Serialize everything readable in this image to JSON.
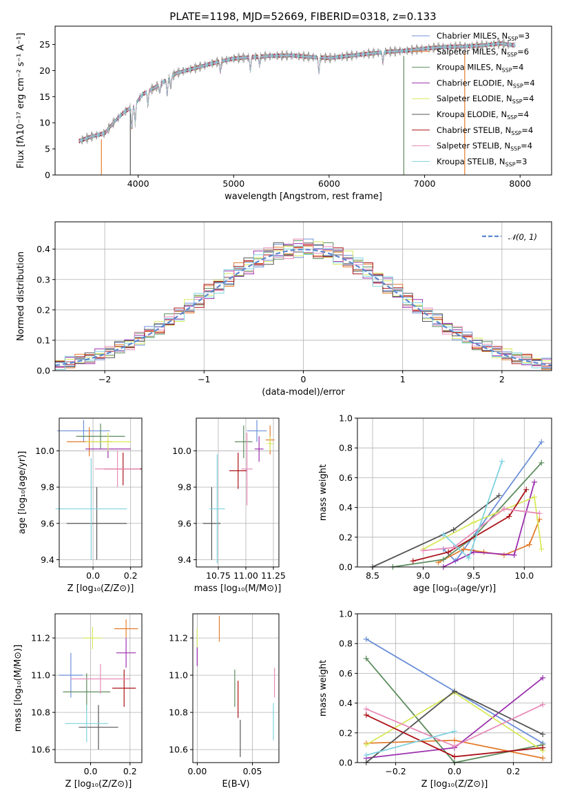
{
  "figure": {
    "title": "PLATE=1198, MJD=52669, FIBERID=0318, z=0.133"
  },
  "colors": {
    "series": [
      "#6b8fd8",
      "#e37b2b",
      "#5c8c5c",
      "#9b2fae",
      "#d7e85a",
      "#555555",
      "#aa1016",
      "#e88ab8",
      "#7ed3e0"
    ],
    "spectrum": "#888888",
    "grid": "#b0b0b0"
  },
  "spectrum_panel": {
    "xlabel": "wavelength [Angstrom, rest frame]",
    "ylabel": "Flux [fλ10⁻¹⁷ erg cm⁻² s⁻¹ A⁻¹]",
    "legend": [
      "Chabrier MILES, N_SSP=3",
      "Salpeter MILES, N_SSP=6",
      "Kroupa MILES, N_SSP=4",
      "Chabrier ELODIE, N_SSP=4",
      "Salpeter ELODIE, N_SSP=4",
      "Kroupa ELODIE, N_SSP=4",
      "Chabrier STELIB, N_SSP=4",
      "Salpeter STELIB, N_SSP=4",
      "Kroupa STELIB, N_SSP=3"
    ],
    "legend_text": [
      [
        "Chabrier MILES, N",
        "SSP",
        "=3"
      ],
      [
        "Salpeter MILES, N",
        "SSP",
        "=6"
      ],
      [
        "Kroupa MILES, N",
        "SSP",
        "=4"
      ],
      [
        "Chabrier ELODIE, N",
        "SSP",
        "=4"
      ],
      [
        "Salpeter ELODIE, N",
        "SSP",
        "=4"
      ],
      [
        "Kroupa ELODIE, N",
        "SSP",
        "=4"
      ],
      [
        "Chabrier STELIB, N",
        "SSP",
        "=4"
      ],
      [
        "Salpeter STELIB, N",
        "SSP",
        "=4"
      ],
      [
        "Kroupa STELIB, N",
        "SSP",
        "=3"
      ]
    ]
  },
  "histogram_panel": {
    "xlabel": "(data-model)/error",
    "ylabel": "Normed distribution",
    "legend": "𝒩(0, 1)"
  },
  "labels": {
    "age": "age  [log₁₀(age/yr)]",
    "z": "Z [log₁₀(Z/Z⊙)]",
    "mass": "mass [log₁₀(M/M⊙)]",
    "massw": "mass weight",
    "ebv": "E(B-V)"
  },
  "chart_data": [
    {
      "type": "line",
      "title": "PLATE=1198, MJD=52669, FIBERID=0318, z=0.133",
      "xlabel": "wavelength [Angstrom, rest frame]",
      "ylabel": "Flux [fλ10⁻¹⁷ erg cm⁻² s⁻¹ A⁻¹]",
      "xlim": [
        3130,
        8330
      ],
      "ylim": [
        0,
        28.5
      ],
      "xticks": [
        4000,
        5000,
        6000,
        7000,
        8000
      ],
      "yticks": [
        0,
        5,
        10,
        15,
        20,
        25
      ],
      "grid": false,
      "legend_position": "upper-right",
      "continuum": [
        [
          3380,
          6.5
        ],
        [
          3500,
          7.3
        ],
        [
          3650,
          8.0
        ],
        [
          3750,
          10.2
        ],
        [
          3850,
          12.0
        ],
        [
          3950,
          13.2
        ],
        [
          4050,
          15.5
        ],
        [
          4200,
          17.0
        ],
        [
          4400,
          19.5
        ],
        [
          4600,
          20.5
        ],
        [
          4800,
          21.5
        ],
        [
          5000,
          22.3
        ],
        [
          5200,
          22.6
        ],
        [
          5400,
          22.8
        ],
        [
          5600,
          22.9
        ],
        [
          5800,
          22.6
        ],
        [
          6000,
          22.4
        ],
        [
          6200,
          22.8
        ],
        [
          6400,
          23.2
        ],
        [
          6600,
          23.6
        ],
        [
          6800,
          23.8
        ],
        [
          7000,
          24.2
        ],
        [
          7200,
          24.5
        ],
        [
          7400,
          24.6
        ],
        [
          7600,
          24.8
        ],
        [
          7800,
          25.2
        ],
        [
          7950,
          24.8
        ]
      ],
      "dips": [
        [
          3934,
          4.0
        ],
        [
          3969,
          3.5
        ],
        [
          4102,
          2.5
        ],
        [
          4226,
          1.5
        ],
        [
          4304,
          3.0
        ],
        [
          4341,
          2.0
        ],
        [
          4861,
          2.0
        ],
        [
          5175,
          2.5
        ],
        [
          5270,
          1.5
        ],
        [
          5893,
          3.0
        ],
        [
          6563,
          2.0
        ]
      ],
      "model_spikes": [
        [
          3615,
          "Salpeter MILES, N_SSP=6"
        ],
        [
          3918,
          "Kroupa ELODIE, N_SSP=4"
        ],
        [
          6782,
          "Kroupa MILES, N_SSP=4"
        ],
        [
          7420,
          "Salpeter MILES, N_SSP=6"
        ]
      ],
      "legend": [
        "Chabrier MILES, N_SSP=3",
        "Salpeter MILES, N_SSP=6",
        "Kroupa MILES, N_SSP=4",
        "Chabrier ELODIE, N_SSP=4",
        "Salpeter ELODIE, N_SSP=4",
        "Kroupa ELODIE, N_SSP=4",
        "Chabrier STELIB, N_SSP=4",
        "Salpeter STELIB, N_SSP=4",
        "Kroupa STELIB, N_SSP=3"
      ]
    },
    {
      "type": "histogram",
      "xlabel": "(data-model)/error",
      "ylabel": "Normed distribution",
      "xlim": [
        -2.5,
        2.5
      ],
      "ylim": [
        0,
        0.49
      ],
      "xticks": [
        -2,
        -1,
        0,
        1,
        2
      ],
      "yticks": [
        0.0,
        0.1,
        0.2,
        0.3,
        0.4
      ],
      "grid": true,
      "bin_width": 0.1,
      "reference_curve": "𝒩(0, 1)",
      "legend_position": "upper-right",
      "bin_jitter": [
        0.012,
        -0.008,
        0.03,
        -0.016,
        0.022,
        -0.014,
        0.008,
        0.02,
        -0.026,
        0.015,
        -0.01,
        0.035,
        -0.02,
        0.006,
        0.018,
        -0.012
      ]
    },
    {
      "type": "scatter",
      "xlabel": "Z [log₁₀(Z/Z⊙)]",
      "ylabel": "age  [log₁₀(age/yr)]",
      "xlim": [
        -0.18,
        0.26
      ],
      "ylim": [
        9.36,
        10.18
      ],
      "xticks": [
        0.0,
        0.2
      ],
      "yticks": [
        9.4,
        9.6,
        9.8,
        10.0
      ],
      "grid": true,
      "series": [
        {
          "name": "Chabrier MILES, N_SSP=3",
          "x": -0.05,
          "y": 10.11,
          "xerr": 0.14,
          "yerr": 0.06
        },
        {
          "name": "Salpeter MILES, N_SSP=6",
          "x": -0.02,
          "y": 10.05,
          "xerr": 0.12,
          "yerr": 0.08
        },
        {
          "name": "Kroupa MILES, N_SSP=4",
          "x": 0.04,
          "y": 10.08,
          "xerr": 0.13,
          "yerr": 0.07
        },
        {
          "name": "Chabrier ELODIE, N_SSP=4",
          "x": 0.08,
          "y": 10.01,
          "xerr": 0.12,
          "yerr": 0.05
        },
        {
          "name": "Salpeter ELODIE, N_SSP=4",
          "x": 0.08,
          "y": 10.05,
          "xerr": 0.12,
          "yerr": 0.05
        },
        {
          "name": "Kroupa ELODIE, N_SSP=4",
          "x": 0.02,
          "y": 9.6,
          "xerr": 0.16,
          "yerr": 0.2
        },
        {
          "name": "Chabrier STELIB, N_SSP=4",
          "x": 0.16,
          "y": 9.9,
          "xerr": 0.1,
          "yerr": 0.09
        },
        {
          "name": "Salpeter STELIB, N_SSP=4",
          "x": 0.13,
          "y": 9.9,
          "xerr": 0.12,
          "yerr": 0.1
        },
        {
          "name": "Kroupa STELIB, N_SSP=3",
          "x": -0.01,
          "y": 9.68,
          "xerr": 0.19,
          "yerr": 0.28
        }
      ]
    },
    {
      "type": "scatter",
      "xlabel": "mass [log₁₀(M/M⊙)]",
      "ylabel": "",
      "xlim": [
        10.55,
        11.3
      ],
      "ylim": [
        9.36,
        10.18
      ],
      "xticks": [
        10.75,
        11.0,
        11.25
      ],
      "yticks": [
        9.4,
        9.6,
        9.8,
        10.0
      ],
      "grid": true,
      "series": [
        {
          "name": "Chabrier MILES, N_SSP=3",
          "x": 11.1,
          "y": 10.11,
          "xerr": 0.09,
          "yerr": 0.06
        },
        {
          "name": "Salpeter MILES, N_SSP=6",
          "x": 11.22,
          "y": 10.06,
          "xerr": 0.04,
          "yerr": 0.08
        },
        {
          "name": "Kroupa MILES, N_SSP=4",
          "x": 10.98,
          "y": 10.05,
          "xerr": 0.08,
          "yerr": 0.09
        },
        {
          "name": "Chabrier ELODIE, N_SSP=4",
          "x": 11.12,
          "y": 10.01,
          "xerr": 0.04,
          "yerr": 0.07
        },
        {
          "name": "Salpeter ELODIE, N_SSP=4",
          "x": 11.22,
          "y": 10.04,
          "xerr": 0.03,
          "yerr": 0.04
        },
        {
          "name": "Kroupa ELODIE, N_SSP=4",
          "x": 10.69,
          "y": 9.6,
          "xerr": 0.08,
          "yerr": 0.2
        },
        {
          "name": "Chabrier STELIB, N_SSP=4",
          "x": 10.93,
          "y": 9.89,
          "xerr": 0.08,
          "yerr": 0.1
        },
        {
          "name": "Salpeter STELIB, N_SSP=4",
          "x": 11.01,
          "y": 9.9,
          "xerr": 0.05,
          "yerr": 0.2
        },
        {
          "name": "Kroupa STELIB, N_SSP=3",
          "x": 10.74,
          "y": 9.68,
          "xerr": 0.07,
          "yerr": 0.3
        }
      ]
    },
    {
      "type": "line",
      "xlabel": "age  [log₁₀(age/yr)]",
      "ylabel": "mass weight",
      "xlim": [
        8.35,
        10.27
      ],
      "ylim": [
        0,
        1.0
      ],
      "xticks": [
        8.5,
        9.0,
        9.5,
        10.0
      ],
      "yticks": [
        0.0,
        0.2,
        0.4,
        0.6,
        0.8,
        1.0
      ],
      "grid": true,
      "series": [
        {
          "name": "Chabrier MILES, N_SSP=3",
          "x": [
            9.2,
            9.32,
            10.17
          ],
          "y": [
            0.12,
            0.04,
            0.84
          ]
        },
        {
          "name": "Salpeter MILES, N_SSP=6",
          "x": [
            9.15,
            9.4,
            9.6,
            9.8,
            10.05,
            10.15
          ],
          "y": [
            0.03,
            0.12,
            0.1,
            0.08,
            0.15,
            0.32
          ]
        },
        {
          "name": "Kroupa MILES, N_SSP=4",
          "x": [
            8.7,
            9.2,
            9.5,
            10.17
          ],
          "y": [
            0.0,
            0.05,
            0.2,
            0.7
          ]
        },
        {
          "name": "Chabrier ELODIE, N_SSP=4",
          "x": [
            9.2,
            9.5,
            9.9,
            10.1
          ],
          "y": [
            0.0,
            0.1,
            0.08,
            0.57
          ]
        },
        {
          "name": "Salpeter ELODIE, N_SSP=4",
          "x": [
            9.0,
            9.5,
            10.1,
            10.17
          ],
          "y": [
            0.12,
            0.3,
            0.47,
            0.12
          ]
        },
        {
          "name": "Kroupa ELODIE, N_SSP=4",
          "x": [
            8.5,
            9.3,
            9.75
          ],
          "y": [
            0.0,
            0.25,
            0.48
          ]
        },
        {
          "name": "Chabrier STELIB, N_SSP=4",
          "x": [
            8.9,
            9.25,
            9.85,
            10.02
          ],
          "y": [
            0.04,
            0.1,
            0.34,
            0.52
          ]
        },
        {
          "name": "Salpeter STELIB, N_SSP=4",
          "x": [
            9.0,
            9.3,
            9.8,
            10.15
          ],
          "y": [
            0.11,
            0.13,
            0.39,
            0.36
          ]
        },
        {
          "name": "Kroupa STELIB, N_SSP=3",
          "x": [
            9.2,
            9.45,
            9.78
          ],
          "y": [
            0.22,
            0.06,
            0.71
          ]
        }
      ]
    },
    {
      "type": "scatter",
      "xlabel": "Z [log₁₀(Z/Z⊙)]",
      "ylabel": "mass [log₁₀(M/M⊙)]",
      "xlim": [
        -0.18,
        0.26
      ],
      "ylim": [
        10.53,
        11.33
      ],
      "xticks": [
        0.0,
        0.2
      ],
      "yticks": [
        10.6,
        10.8,
        11.0,
        11.2
      ],
      "grid": true,
      "series": [
        {
          "name": "Chabrier MILES, N_SSP=3",
          "x": -0.1,
          "y": 11.0,
          "xerr": 0.06,
          "yerr": 0.12
        },
        {
          "name": "Salpeter MILES, N_SSP=6",
          "x": 0.18,
          "y": 11.25,
          "xerr": 0.06,
          "yerr": 0.05
        },
        {
          "name": "Kroupa MILES, N_SSP=4",
          "x": -0.02,
          "y": 10.91,
          "xerr": 0.12,
          "yerr": 0.1
        },
        {
          "name": "Chabrier ELODIE, N_SSP=4",
          "x": 0.18,
          "y": 11.12,
          "xerr": 0.05,
          "yerr": 0.08
        },
        {
          "name": "Salpeter ELODIE, N_SSP=4",
          "x": 0.01,
          "y": 11.2,
          "xerr": 0.05,
          "yerr": 0.06
        },
        {
          "name": "Kroupa ELODIE, N_SSP=4",
          "x": 0.04,
          "y": 10.72,
          "xerr": 0.1,
          "yerr": 0.12
        },
        {
          "name": "Chabrier STELIB, N_SSP=4",
          "x": 0.17,
          "y": 10.93,
          "xerr": 0.06,
          "yerr": 0.1
        },
        {
          "name": "Salpeter STELIB, N_SSP=4",
          "x": 0.05,
          "y": 10.98,
          "xerr": 0.15,
          "yerr": 0.08
        },
        {
          "name": "Kroupa STELIB, N_SSP=3",
          "x": -0.02,
          "y": 10.74,
          "xerr": 0.11,
          "yerr": 0.1
        }
      ]
    },
    {
      "type": "scatter",
      "xlabel": "E(B-V)",
      "ylabel": "",
      "xlim": [
        -0.004,
        0.074
      ],
      "ylim": [
        10.53,
        11.33
      ],
      "xticks": [
        0.0,
        0.05
      ],
      "yticks": [
        10.6,
        10.8,
        11.0,
        11.2
      ],
      "grid": true,
      "series": [
        {
          "name": "Chabrier MILES, N_SSP=3",
          "x": 0.0,
          "y": 11.15,
          "yerr": 0.1
        },
        {
          "name": "Salpeter MILES, N_SSP=6",
          "x": 0.02,
          "y": 11.25,
          "yerr": 0.07
        },
        {
          "name": "Kroupa MILES, N_SSP=4",
          "x": 0.034,
          "y": 10.93,
          "yerr": 0.1
        },
        {
          "name": "Chabrier ELODIE, N_SSP=4",
          "x": 0.0,
          "y": 11.1,
          "yerr": 0.05
        },
        {
          "name": "Salpeter ELODIE, N_SSP=4",
          "x": 0.0,
          "y": 11.2,
          "yerr": 0.05
        },
        {
          "name": "Kroupa ELODIE, N_SSP=4",
          "x": 0.039,
          "y": 10.66,
          "yerr": 0.1
        },
        {
          "name": "Chabrier STELIB, N_SSP=4",
          "x": 0.037,
          "y": 10.87,
          "yerr": 0.1
        },
        {
          "name": "Salpeter STELIB, N_SSP=4",
          "x": 0.07,
          "y": 10.96,
          "yerr": 0.08
        },
        {
          "name": "Kroupa STELIB, N_SSP=3",
          "x": 0.069,
          "y": 10.75,
          "yerr": 0.1
        }
      ]
    },
    {
      "type": "line",
      "xlabel": "Z [log₁₀(Z/Z⊙)]",
      "ylabel": "mass weight",
      "xlim": [
        -0.33,
        0.33
      ],
      "ylim": [
        0,
        1.0
      ],
      "xticks": [
        -0.2,
        0.0,
        0.2
      ],
      "yticks": [
        0.0,
        0.2,
        0.4,
        0.6,
        0.8,
        1.0
      ],
      "grid": true,
      "series": [
        {
          "name": "Chabrier MILES, N_SSP=3",
          "x": [
            -0.3,
            0.3
          ],
          "y": [
            0.83,
            0.13
          ]
        },
        {
          "name": "Salpeter MILES, N_SSP=6",
          "x": [
            -0.3,
            0.0,
            0.3
          ],
          "y": [
            0.13,
            0.15,
            0.03
          ]
        },
        {
          "name": "Kroupa MILES, N_SSP=4",
          "x": [
            -0.3,
            0.0,
            0.3
          ],
          "y": [
            0.7,
            0.0,
            0.12
          ]
        },
        {
          "name": "Chabrier ELODIE, N_SSP=4",
          "x": [
            -0.3,
            0.0,
            0.3
          ],
          "y": [
            0.03,
            0.1,
            0.57
          ]
        },
        {
          "name": "Salpeter ELODIE, N_SSP=4",
          "x": [
            -0.3,
            0.0,
            0.3
          ],
          "y": [
            0.12,
            0.47,
            0.08
          ]
        },
        {
          "name": "Kroupa ELODIE, N_SSP=4",
          "x": [
            -0.3,
            0.0,
            0.3
          ],
          "y": [
            0.0,
            0.48,
            0.19
          ]
        },
        {
          "name": "Chabrier STELIB, N_SSP=4",
          "x": [
            -0.3,
            0.0,
            0.3
          ],
          "y": [
            0.32,
            0.04,
            0.1
          ]
        },
        {
          "name": "Salpeter STELIB, N_SSP=4",
          "x": [
            -0.3,
            0.0,
            0.3
          ],
          "y": [
            0.36,
            0.11,
            0.39
          ]
        },
        {
          "name": "Kroupa STELIB, N_SSP=3",
          "x": [
            -0.3,
            0.0
          ],
          "y": [
            0.05,
            0.21
          ]
        }
      ]
    }
  ]
}
